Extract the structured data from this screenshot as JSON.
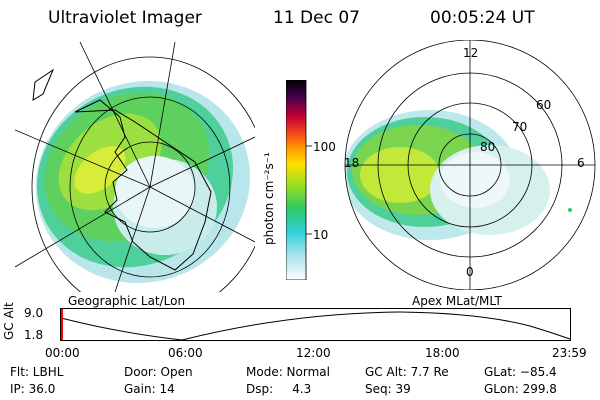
{
  "header": {
    "title": "Ultraviolet Imager",
    "date": "11 Dec 07",
    "time": "00:05:24 UT"
  },
  "left_panel": {
    "caption": "Geographic Lat/Lon"
  },
  "right_panel": {
    "caption": "Apex MLat/MLT",
    "mlt_labels": [
      "12",
      "18",
      "6",
      "0"
    ],
    "lat_labels": [
      "60",
      "70",
      "80"
    ]
  },
  "colorbar": {
    "label": "photon cm⁻²s⁻¹",
    "ticks": [
      "100",
      "10"
    ],
    "scale": "log"
  },
  "timeline": {
    "axis_label": "GC Alt",
    "y_ticks": [
      "9.0",
      "1.8"
    ],
    "x_ticks": [
      "00:00",
      "06:00",
      "12:00",
      "18:00",
      "23:59"
    ],
    "current_marker_color": "#ff0000"
  },
  "footer": {
    "flt": "Flt: LBHL",
    "ip": "IP: 36.0",
    "door": "Door: Open",
    "gain": "Gain: 14",
    "mode": "Mode: Normal",
    "dsp": "Dsp:     4.3",
    "gc_alt": "GC Alt: 7.7 Re",
    "seq": "Seq: 39",
    "glat": "GLat: −85.4",
    "glon": "GLon: 299.8"
  }
}
